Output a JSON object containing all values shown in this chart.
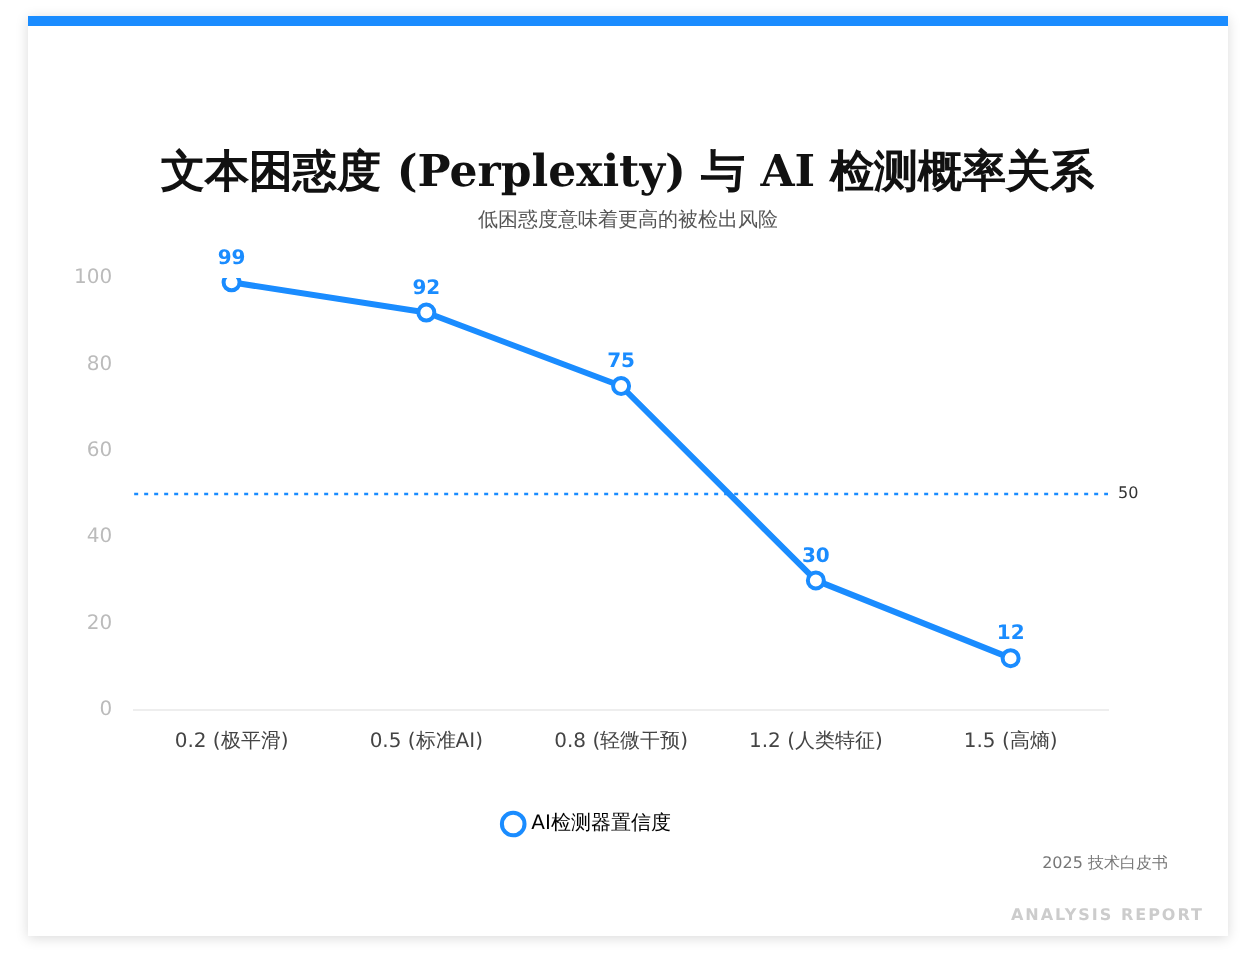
{
  "chart_data": {
    "type": "line",
    "title": "文本困惑度 (Perplexity) 与 AI 检测概率关系",
    "subtitle": "低困惑度意味着更高的被检出风险",
    "categories": [
      "0.2 (极平滑)",
      "0.5 (标准AI)",
      "0.8 (轻微干预)",
      "1.2 (人类特征)",
      "1.5 (高熵)"
    ],
    "series": [
      {
        "name": "AI检测器置信度",
        "color": "#1a8cff",
        "values": [
          99,
          92,
          75,
          30,
          12
        ]
      }
    ],
    "ylim": [
      0,
      100
    ],
    "yticks": [
      0,
      20,
      40,
      60,
      80,
      100
    ],
    "grid": false,
    "legend": "bottom",
    "marker": "circle",
    "line_style": "solid",
    "data_labels": true,
    "ref_lines": [
      {
        "axis": "y",
        "value": 50,
        "label": "50",
        "color": "#1a8cff",
        "line_style": "dotted"
      }
    ],
    "annotations": [
      "2025 技术白皮书",
      "ANALYSIS REPORT"
    ]
  }
}
